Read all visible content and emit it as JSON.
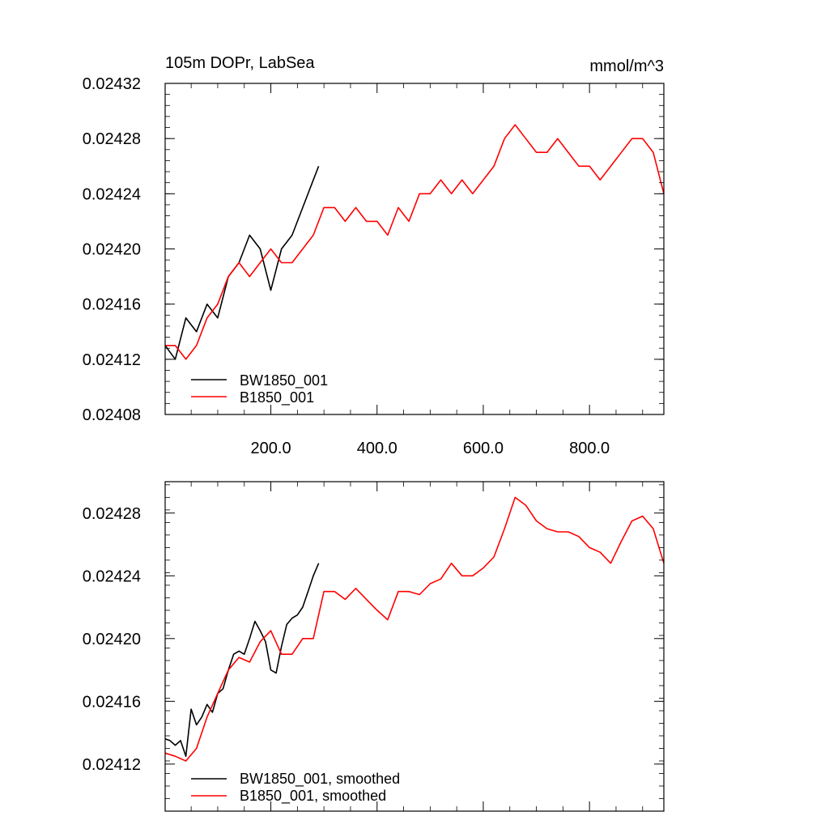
{
  "chart_data": [
    {
      "type": "line",
      "title_left": "105m DOPr, LabSea",
      "title_right": "mmol/m^3",
      "xlim": [
        1,
        940
      ],
      "ylim": [
        0.02408,
        0.02432
      ],
      "yticks": [
        0.02408,
        0.02412,
        0.02416,
        0.0242,
        0.02424,
        0.02428,
        0.02432
      ],
      "ytick_labels": [
        "0.02408",
        "0.02412",
        "0.02416",
        "0.02420",
        "0.02424",
        "0.02428",
        "0.02432"
      ],
      "xticks": [
        200,
        400,
        600,
        800
      ],
      "xtick_labels": [
        "200.0",
        "400.0",
        "600.0",
        "800.0"
      ],
      "legend": "bottom-left",
      "series": [
        {
          "name": "BW1850_001",
          "color": "#000000",
          "x": [
            1,
            20,
            40,
            60,
            80,
            100,
            120,
            140,
            160,
            180,
            200,
            220,
            240,
            260,
            280,
            290
          ],
          "y": [
            0.02413,
            0.02412,
            0.02415,
            0.02414,
            0.02416,
            0.02415,
            0.02418,
            0.02419,
            0.02421,
            0.0242,
            0.02417,
            0.0242,
            0.02421,
            0.02423,
            0.02425,
            0.02426
          ]
        },
        {
          "name": "B1850_001",
          "color": "#ff0000",
          "x": [
            1,
            20,
            40,
            60,
            80,
            100,
            120,
            140,
            160,
            180,
            200,
            220,
            240,
            260,
            280,
            300,
            320,
            340,
            360,
            380,
            400,
            420,
            440,
            460,
            480,
            500,
            520,
            540,
            560,
            580,
            600,
            620,
            640,
            660,
            680,
            700,
            720,
            740,
            760,
            780,
            800,
            820,
            840,
            860,
            880,
            900,
            920,
            940
          ],
          "y": [
            0.02413,
            0.02413,
            0.02412,
            0.02413,
            0.02415,
            0.02416,
            0.02418,
            0.02419,
            0.02418,
            0.02419,
            0.0242,
            0.02419,
            0.02419,
            0.0242,
            0.02421,
            0.02423,
            0.02423,
            0.02422,
            0.02423,
            0.02422,
            0.02422,
            0.02421,
            0.02423,
            0.02422,
            0.02424,
            0.02424,
            0.02425,
            0.02424,
            0.02425,
            0.02424,
            0.02425,
            0.02426,
            0.02428,
            0.02429,
            0.02428,
            0.02427,
            0.02427,
            0.02428,
            0.02427,
            0.02426,
            0.02426,
            0.02425,
            0.02426,
            0.02427,
            0.02428,
            0.02428,
            0.02427,
            0.02424
          ]
        }
      ]
    },
    {
      "type": "line",
      "xlim": [
        1,
        940
      ],
      "ylim": [
        0.02409,
        0.0243
      ],
      "yticks": [
        0.02412,
        0.02416,
        0.0242,
        0.02424,
        0.02428
      ],
      "ytick_labels": [
        "0.02412",
        "0.02416",
        "0.02420",
        "0.02424",
        "0.02428"
      ],
      "xticks": [
        200,
        400,
        600,
        800
      ],
      "legend": "bottom-left",
      "series": [
        {
          "name": "BW1850_001, smoothed",
          "color": "#000000",
          "x": [
            1,
            10,
            20,
            30,
            40,
            50,
            60,
            70,
            80,
            90,
            100,
            110,
            120,
            130,
            140,
            150,
            160,
            170,
            180,
            190,
            200,
            210,
            220,
            230,
            240,
            250,
            260,
            270,
            280,
            290
          ],
          "y": [
            0.024136,
            0.024135,
            0.024132,
            0.024135,
            0.024125,
            0.024155,
            0.024145,
            0.02415,
            0.024158,
            0.024153,
            0.024165,
            0.024168,
            0.02418,
            0.02419,
            0.024192,
            0.02419,
            0.0242,
            0.024211,
            0.024205,
            0.024198,
            0.02418,
            0.024178,
            0.024195,
            0.024209,
            0.024213,
            0.024215,
            0.02422,
            0.02423,
            0.02424,
            0.024248
          ]
        },
        {
          "name": "B1850_001, smoothed",
          "color": "#ff0000",
          "x": [
            1,
            20,
            40,
            60,
            80,
            100,
            120,
            140,
            160,
            180,
            200,
            220,
            240,
            260,
            280,
            300,
            320,
            340,
            360,
            380,
            400,
            420,
            440,
            460,
            480,
            500,
            520,
            540,
            560,
            580,
            600,
            620,
            640,
            660,
            680,
            700,
            720,
            740,
            760,
            780,
            800,
            820,
            840,
            860,
            880,
            900,
            920,
            940
          ],
          "y": [
            0.024127,
            0.024125,
            0.024122,
            0.02413,
            0.02415,
            0.024165,
            0.02418,
            0.024188,
            0.024185,
            0.024198,
            0.024205,
            0.02419,
            0.02419,
            0.0242,
            0.0242,
            0.02423,
            0.02423,
            0.024225,
            0.024232,
            0.024225,
            0.024218,
            0.024212,
            0.02423,
            0.02423,
            0.024228,
            0.024235,
            0.024238,
            0.024248,
            0.02424,
            0.02424,
            0.024245,
            0.024252,
            0.02427,
            0.02429,
            0.024285,
            0.024275,
            0.02427,
            0.024268,
            0.024268,
            0.024265,
            0.024258,
            0.024255,
            0.024248,
            0.024262,
            0.024275,
            0.024278,
            0.02427,
            0.024248
          ]
        }
      ]
    }
  ]
}
